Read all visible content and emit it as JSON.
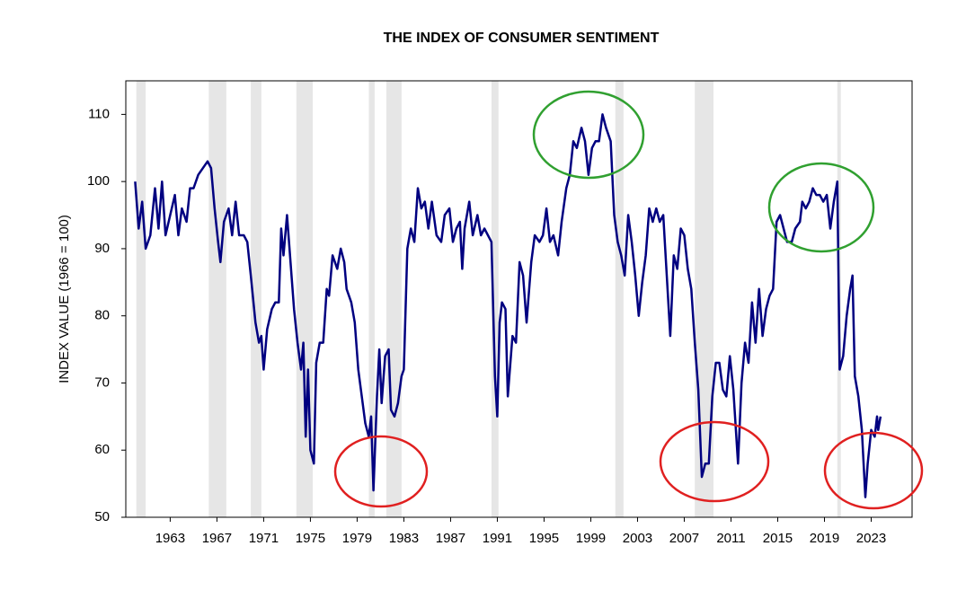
{
  "chart_data": {
    "type": "line",
    "title": "THE INDEX OF CONSUMER SENTIMENT",
    "y_label": "INDEX VALUE (1966 = 100)",
    "xlim": [
      1959.2,
      2026.5
    ],
    "ylim": [
      50,
      115
    ],
    "xticks": [
      1963,
      1967,
      1971,
      1975,
      1979,
      1983,
      1987,
      1991,
      1995,
      1999,
      2003,
      2007,
      2011,
      2015,
      2019,
      2023
    ],
    "yticks": [
      50,
      60,
      70,
      80,
      90,
      100,
      110
    ],
    "recession_color": "#e6e6e6",
    "recessions": [
      [
        1960.1,
        1960.9
      ],
      [
        1966.3,
        1967.8
      ],
      [
        1969.9,
        1970.8
      ],
      [
        1973.8,
        1975.2
      ],
      [
        1980.0,
        1980.5
      ],
      [
        1981.5,
        1982.8
      ],
      [
        1990.5,
        1991.1
      ],
      [
        2001.1,
        2001.8
      ],
      [
        2007.9,
        2009.5
      ],
      [
        2020.1,
        2020.4
      ]
    ],
    "series": [
      {
        "name": "Index of Consumer Sentiment",
        "color": "#000080",
        "x": [
          1960.0,
          1960.3,
          1960.6,
          1960.9,
          1961.3,
          1961.7,
          1962.0,
          1962.3,
          1962.6,
          1963.0,
          1963.4,
          1963.7,
          1964.0,
          1964.4,
          1964.7,
          1965.0,
          1965.4,
          1965.8,
          1966.2,
          1966.5,
          1966.8,
          1967.1,
          1967.3,
          1967.6,
          1968.0,
          1968.3,
          1968.6,
          1968.9,
          1969.3,
          1969.6,
          1969.9,
          1970.3,
          1970.6,
          1970.8,
          1971.0,
          1971.3,
          1971.7,
          1972.0,
          1972.3,
          1972.5,
          1972.7,
          1973.0,
          1973.3,
          1973.6,
          1973.9,
          1974.2,
          1974.4,
          1974.6,
          1974.8,
          1975.0,
          1975.3,
          1975.5,
          1975.8,
          1976.1,
          1976.4,
          1976.6,
          1976.9,
          1977.3,
          1977.6,
          1977.9,
          1978.1,
          1978.5,
          1978.8,
          1979.1,
          1979.4,
          1979.7,
          1980.0,
          1980.2,
          1980.4,
          1980.7,
          1980.9,
          1981.1,
          1981.4,
          1981.7,
          1981.9,
          1982.2,
          1982.5,
          1982.8,
          1983.0,
          1983.3,
          1983.6,
          1983.9,
          1984.2,
          1984.5,
          1984.8,
          1985.1,
          1985.4,
          1985.8,
          1986.2,
          1986.5,
          1986.9,
          1987.2,
          1987.5,
          1987.8,
          1988.0,
          1988.2,
          1988.6,
          1988.9,
          1989.3,
          1989.6,
          1989.9,
          1990.2,
          1990.5,
          1990.8,
          1991.0,
          1991.2,
          1991.4,
          1991.7,
          1991.9,
          1992.3,
          1992.6,
          1992.9,
          1993.2,
          1993.5,
          1993.9,
          1994.2,
          1994.6,
          1994.9,
          1995.2,
          1995.5,
          1995.8,
          1996.2,
          1996.5,
          1996.9,
          1997.2,
          1997.5,
          1997.8,
          1998.2,
          1998.5,
          1998.8,
          1999.1,
          1999.4,
          1999.7,
          2000.0,
          2000.3,
          2000.7,
          2001.0,
          2001.3,
          2001.6,
          2001.9,
          2002.2,
          2002.5,
          2002.8,
          2003.1,
          2003.4,
          2003.7,
          2004.0,
          2004.3,
          2004.6,
          2004.9,
          2005.2,
          2005.5,
          2005.8,
          2006.1,
          2006.4,
          2006.7,
          2007.0,
          2007.3,
          2007.6,
          2007.9,
          2008.2,
          2008.5,
          2008.8,
          2009.1,
          2009.4,
          2009.7,
          2010.0,
          2010.3,
          2010.6,
          2010.9,
          2011.2,
          2011.6,
          2011.9,
          2012.2,
          2012.5,
          2012.8,
          2013.1,
          2013.4,
          2013.7,
          2014.0,
          2014.3,
          2014.6,
          2014.9,
          2015.2,
          2015.5,
          2015.8,
          2016.2,
          2016.5,
          2016.9,
          2017.1,
          2017.4,
          2017.7,
          2018.0,
          2018.3,
          2018.6,
          2018.9,
          2019.2,
          2019.5,
          2019.8,
          2020.1,
          2020.3,
          2020.6,
          2020.9,
          2021.2,
          2021.4,
          2021.6,
          2021.9,
          2022.2,
          2022.5,
          2022.7,
          2023.0,
          2023.3,
          2023.5,
          2023.6,
          2023.8
        ],
        "values": [
          100,
          93,
          97,
          90,
          92,
          99,
          93,
          100,
          92,
          95,
          98,
          92,
          96,
          94,
          99,
          99,
          101,
          102,
          103,
          102,
          96,
          91,
          88,
          94,
          96,
          92,
          97,
          92,
          92,
          91,
          86,
          79,
          76,
          77,
          72,
          78,
          81,
          82,
          82,
          93,
          89,
          95,
          88,
          81,
          76,
          72,
          76,
          62,
          72,
          60,
          58,
          73,
          76,
          76,
          84,
          83,
          89,
          87,
          90,
          88,
          84,
          82,
          79,
          72,
          68,
          64,
          62,
          65,
          54,
          68,
          75,
          67,
          74,
          75,
          66,
          65,
          67,
          71,
          72,
          90,
          93,
          91,
          99,
          96,
          97,
          93,
          97,
          92,
          91,
          95,
          96,
          91,
          93,
          94,
          87,
          93,
          97,
          92,
          95,
          92,
          93,
          92,
          91,
          71,
          65,
          79,
          82,
          81,
          68,
          77,
          76,
          88,
          86,
          79,
          88,
          92,
          91,
          92,
          96,
          91,
          92,
          89,
          94,
          99,
          101,
          106,
          105,
          108,
          106,
          101,
          105,
          106,
          106,
          110,
          108,
          106,
          95,
          91,
          89,
          86,
          95,
          91,
          86,
          80,
          85,
          89,
          96,
          94,
          96,
          94,
          95,
          86,
          77,
          89,
          87,
          93,
          92,
          87,
          84,
          76,
          69,
          56,
          58,
          58,
          68,
          73,
          73,
          69,
          68,
          74,
          69,
          58,
          70,
          76,
          73,
          82,
          76,
          84,
          77,
          81,
          83,
          84,
          94,
          95,
          93,
          91,
          91,
          93,
          94,
          97,
          96,
          97,
          99,
          98,
          98,
          97,
          98,
          93,
          97,
          100,
          72,
          74,
          80,
          84,
          86,
          71,
          68,
          63,
          53,
          58,
          63,
          62,
          65,
          63,
          65
        ]
      }
    ]
  }
}
